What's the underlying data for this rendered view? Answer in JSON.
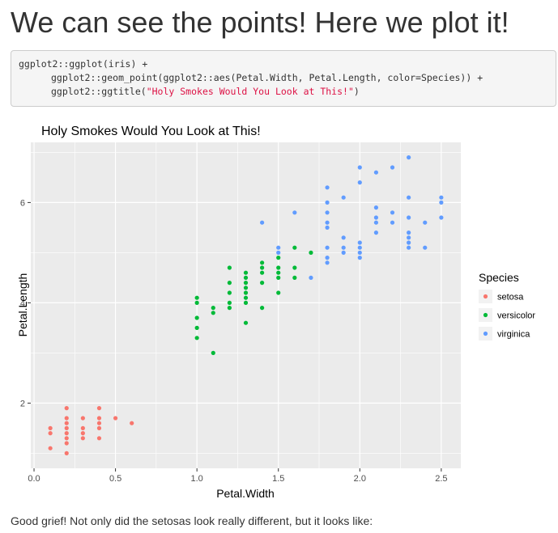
{
  "page": {
    "heading": "We can see the points! Here we plot it!",
    "code": {
      "line1": "ggplot2::ggplot(iris) +",
      "line2": "ggplot2::geom_point(ggplot2::aes(Petal.Width, Petal.Length, color=Species)) +",
      "line3_prefix": "ggplot2::ggtitle(",
      "line3_string": "\"Holy Smokes Would You Look at This!\"",
      "line3_suffix": ")"
    },
    "footer_text": "Good grief! Not only did the setosas look really different, but it looks like:"
  },
  "chart_data": {
    "type": "scatter",
    "title": "Holy Smokes Would You Look at This!",
    "xlabel": "Petal.Width",
    "ylabel": "Petal.Length",
    "xlim": [
      -0.02,
      2.62
    ],
    "ylim": [
      0.7,
      7.2
    ],
    "x_ticks": [
      0.0,
      0.5,
      1.0,
      1.5,
      2.0,
      2.5
    ],
    "x_tick_labels": [
      "0.0",
      "0.5",
      "1.0",
      "1.5",
      "2.0",
      "2.5"
    ],
    "y_ticks": [
      2,
      4,
      6
    ],
    "y_tick_labels": [
      "2",
      "4",
      "6"
    ],
    "grid": true,
    "background_color": "#ebebeb",
    "grid_color": "#ffffff",
    "legend": {
      "title": "Species",
      "position": "right"
    },
    "series": [
      {
        "name": "setosa",
        "color": "#f8766d",
        "points": [
          [
            0.1,
            1.1
          ],
          [
            0.1,
            1.4
          ],
          [
            0.1,
            1.5
          ],
          [
            0.2,
            1.0
          ],
          [
            0.2,
            1.2
          ],
          [
            0.2,
            1.3
          ],
          [
            0.2,
            1.4
          ],
          [
            0.2,
            1.5
          ],
          [
            0.2,
            1.6
          ],
          [
            0.2,
            1.7
          ],
          [
            0.2,
            1.9
          ],
          [
            0.3,
            1.3
          ],
          [
            0.3,
            1.4
          ],
          [
            0.3,
            1.5
          ],
          [
            0.3,
            1.7
          ],
          [
            0.4,
            1.3
          ],
          [
            0.4,
            1.5
          ],
          [
            0.4,
            1.6
          ],
          [
            0.4,
            1.7
          ],
          [
            0.4,
            1.9
          ],
          [
            0.5,
            1.7
          ],
          [
            0.6,
            1.6
          ]
        ]
      },
      {
        "name": "versicolor",
        "color": "#00ba38",
        "points": [
          [
            1.0,
            3.3
          ],
          [
            1.0,
            3.5
          ],
          [
            1.0,
            3.7
          ],
          [
            1.0,
            4.0
          ],
          [
            1.0,
            4.1
          ],
          [
            1.1,
            3.0
          ],
          [
            1.1,
            3.8
          ],
          [
            1.1,
            3.9
          ],
          [
            1.2,
            3.9
          ],
          [
            1.2,
            4.0
          ],
          [
            1.2,
            4.2
          ],
          [
            1.2,
            4.4
          ],
          [
            1.2,
            4.7
          ],
          [
            1.3,
            3.6
          ],
          [
            1.3,
            4.0
          ],
          [
            1.3,
            4.1
          ],
          [
            1.3,
            4.2
          ],
          [
            1.3,
            4.3
          ],
          [
            1.3,
            4.4
          ],
          [
            1.3,
            4.5
          ],
          [
            1.3,
            4.6
          ],
          [
            1.4,
            3.9
          ],
          [
            1.4,
            4.4
          ],
          [
            1.4,
            4.6
          ],
          [
            1.4,
            4.7
          ],
          [
            1.4,
            4.8
          ],
          [
            1.5,
            4.2
          ],
          [
            1.5,
            4.5
          ],
          [
            1.5,
            4.6
          ],
          [
            1.5,
            4.7
          ],
          [
            1.5,
            4.9
          ],
          [
            1.6,
            4.5
          ],
          [
            1.6,
            4.7
          ],
          [
            1.6,
            5.1
          ],
          [
            1.7,
            5.0
          ]
        ]
      },
      {
        "name": "virginica",
        "color": "#619cff",
        "points": [
          [
            1.4,
            5.6
          ],
          [
            1.5,
            5.0
          ],
          [
            1.5,
            5.1
          ],
          [
            1.6,
            5.8
          ],
          [
            1.7,
            4.5
          ],
          [
            1.8,
            4.8
          ],
          [
            1.8,
            4.9
          ],
          [
            1.8,
            5.1
          ],
          [
            1.8,
            5.5
          ],
          [
            1.8,
            5.6
          ],
          [
            1.8,
            5.8
          ],
          [
            1.8,
            6.0
          ],
          [
            1.8,
            6.3
          ],
          [
            1.9,
            5.0
          ],
          [
            1.9,
            5.1
          ],
          [
            1.9,
            5.3
          ],
          [
            1.9,
            6.1
          ],
          [
            2.0,
            4.9
          ],
          [
            2.0,
            5.0
          ],
          [
            2.0,
            5.1
          ],
          [
            2.0,
            5.2
          ],
          [
            2.0,
            6.4
          ],
          [
            2.0,
            6.7
          ],
          [
            2.1,
            5.4
          ],
          [
            2.1,
            5.6
          ],
          [
            2.1,
            5.7
          ],
          [
            2.1,
            5.9
          ],
          [
            2.1,
            6.6
          ],
          [
            2.2,
            5.6
          ],
          [
            2.2,
            5.8
          ],
          [
            2.2,
            6.7
          ],
          [
            2.3,
            5.1
          ],
          [
            2.3,
            5.2
          ],
          [
            2.3,
            5.3
          ],
          [
            2.3,
            5.4
          ],
          [
            2.3,
            5.7
          ],
          [
            2.3,
            6.1
          ],
          [
            2.3,
            6.9
          ],
          [
            2.4,
            5.1
          ],
          [
            2.4,
            5.6
          ],
          [
            2.5,
            5.7
          ],
          [
            2.5,
            6.0
          ],
          [
            2.5,
            6.1
          ]
        ]
      }
    ]
  }
}
